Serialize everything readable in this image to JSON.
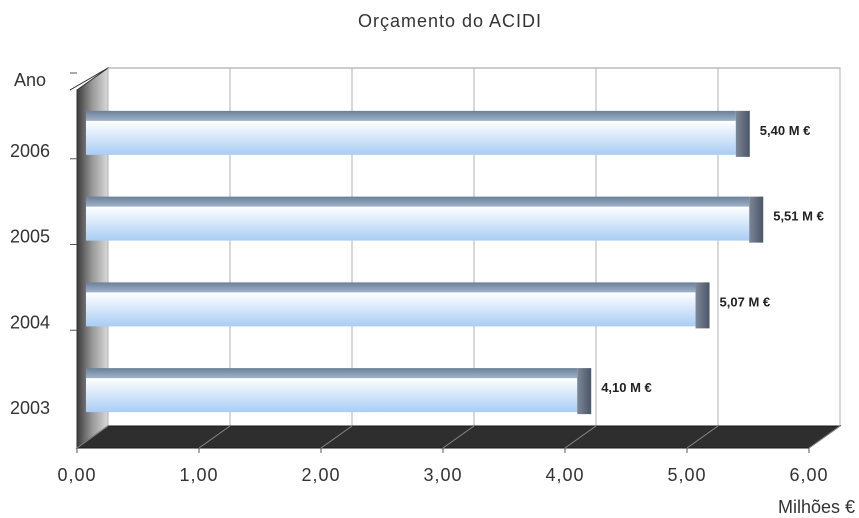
{
  "chart_data": {
    "type": "bar",
    "orientation": "horizontal",
    "style": "3d",
    "title": "Orçamento do ACIDI",
    "ylabel": "Ano",
    "xlabel": "Milhões €",
    "categories": [
      "2006",
      "2005",
      "2004",
      "2003"
    ],
    "values": [
      5.4,
      5.51,
      5.07,
      4.1
    ],
    "data_labels": [
      "5,40 M €",
      "5,51 M €",
      "5,07 M €",
      "4,10 M €"
    ],
    "xlim": [
      0,
      6
    ],
    "x_ticks": [
      "0,00",
      "1,00",
      "2,00",
      "3,00",
      "4,00",
      "5,00",
      "6,00"
    ],
    "grid": true,
    "legend": "none",
    "colors": {
      "bar_top": "#ffffff",
      "bar_bottom": "#a8cdf5",
      "bar_end": "#5b6b80",
      "wall": "#8a8a8a",
      "floor": "#2e2e2e",
      "grid": "#b0b0b0"
    }
  }
}
